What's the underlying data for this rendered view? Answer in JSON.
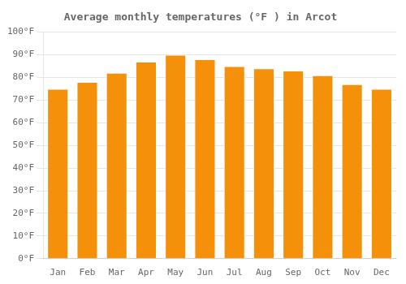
{
  "chart_data": {
    "type": "bar",
    "title": "Average monthly temperatures (°F ) in Arcot",
    "categories": [
      "Jan",
      "Feb",
      "Mar",
      "Apr",
      "May",
      "Jun",
      "Jul",
      "Aug",
      "Sep",
      "Oct",
      "Nov",
      "Dec"
    ],
    "values": [
      75,
      78,
      82,
      87,
      90,
      88,
      85,
      84,
      83,
      81,
      77,
      75
    ],
    "color": "#F5900A",
    "ylim": [
      0,
      100
    ],
    "yticks": [
      {
        "value": 0,
        "label": "0°F"
      },
      {
        "value": 10,
        "label": "10°F"
      },
      {
        "value": 20,
        "label": "20°F"
      },
      {
        "value": 30,
        "label": "30°F"
      },
      {
        "value": 40,
        "label": "40°F"
      },
      {
        "value": 50,
        "label": "50°F"
      },
      {
        "value": 60,
        "label": "60°F"
      },
      {
        "value": 70,
        "label": "70°F"
      },
      {
        "value": 80,
        "label": "80°F"
      },
      {
        "value": 90,
        "label": "90°F"
      },
      {
        "value": 100,
        "label": "100°F"
      }
    ],
    "grid": true
  }
}
